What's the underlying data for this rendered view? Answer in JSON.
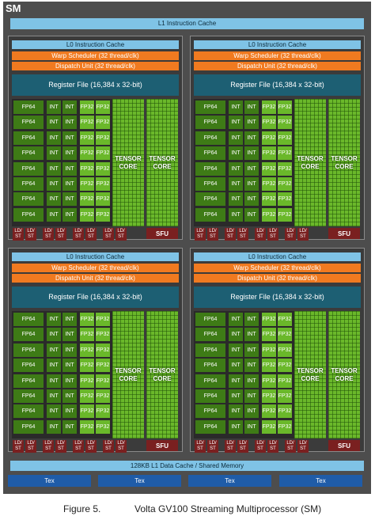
{
  "sm_title": "SM",
  "l1_instruction_cache": "L1 Instruction Cache",
  "partition_labels": {
    "l0_cache": "L0 Instruction Cache",
    "warp_scheduler": "Warp Scheduler (32 thread/clk)",
    "dispatch_unit": "Dispatch Unit (32 thread/clk)",
    "register_file": "Register File (16,384 x 32-bit)",
    "fp64": "FP64",
    "int": "INT",
    "fp32": "FP32",
    "tensor_core_line1": "TENSOR",
    "tensor_core_line2": "CORE",
    "ldst_line1": "LD/",
    "ldst_line2": "ST",
    "sfu": "SFU"
  },
  "partition_count": 4,
  "unit_rows_per_partition": 8,
  "tensor_cores_per_partition": 2,
  "ldst_units_per_partition": 8,
  "l1_data_cache": "128KB L1 Data Cache / Shared Memory",
  "tex_units": [
    "Tex",
    "Tex",
    "Tex",
    "Tex"
  ],
  "caption": {
    "figure_number": "Figure 5.",
    "text": "Volta GV100 Streaming Multiprocessor (SM)"
  },
  "colors": {
    "sm_background": "#4d4d4d",
    "cache": "#7fc3e6",
    "scheduler": "#f07a20",
    "register_file": "#1d5f73",
    "fp64_int": "#3e7b16",
    "fp32_tensor": "#6ab82a",
    "ldst_sfu": "#7a2020",
    "tex": "#1f5ca8"
  }
}
